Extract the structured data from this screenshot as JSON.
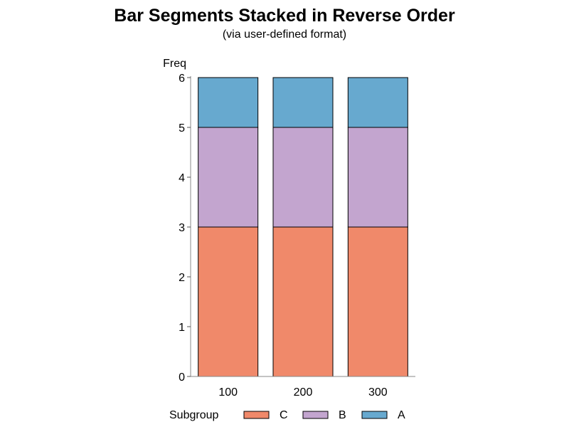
{
  "chart_data": {
    "type": "bar",
    "stacked": true,
    "title": "Bar Segments Stacked in Reverse Order",
    "subtitle": "(via user-defined format)",
    "xlabel": "",
    "ylabel": "Freq",
    "categories": [
      "100",
      "200",
      "300"
    ],
    "ylim": [
      0,
      6
    ],
    "yticks": [
      0,
      1,
      2,
      3,
      4,
      5,
      6
    ],
    "grid": false,
    "legend_title": "Subgroup",
    "legend_position": "bottom",
    "series": [
      {
        "name": "C",
        "values": [
          3,
          3,
          3
        ],
        "color": "#F0896A"
      },
      {
        "name": "B",
        "values": [
          2,
          2,
          2
        ],
        "color": "#C3A5CF"
      },
      {
        "name": "A",
        "values": [
          1,
          1,
          1
        ],
        "color": "#67A9CF"
      }
    ]
  }
}
